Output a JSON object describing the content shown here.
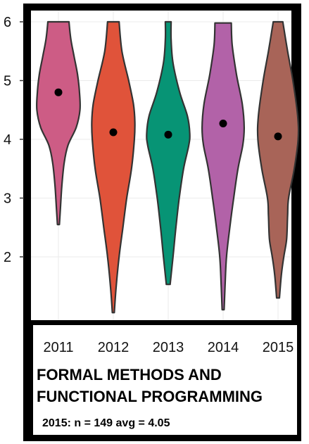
{
  "chart_data": {
    "type": "violin",
    "title_lines": [
      "FORMAL METHODS AND",
      "FUNCTIONAL PROGRAMMING"
    ],
    "subtitle": "2015: n = 149 avg = 4.05",
    "xlabel": "",
    "ylabel": "",
    "ylim": [
      1.0,
      6.2
    ],
    "yticks": [
      2,
      3,
      4,
      5,
      6
    ],
    "grid": true,
    "categories": [
      "2011",
      "2012",
      "2013",
      "2014",
      "2015"
    ],
    "colors": [
      "#CD5C85",
      "#E0533A",
      "#079475",
      "#B262A8",
      "#A86458"
    ],
    "means": [
      4.8,
      4.12,
      4.08,
      4.27,
      4.05
    ],
    "ranges": [
      [
        2.55,
        6.0
      ],
      [
        1.05,
        6.0
      ],
      [
        1.53,
        6.0
      ],
      [
        1.1,
        5.98
      ],
      [
        1.3,
        6.0
      ]
    ],
    "profiles": [
      [
        [
          2.55,
          0.02
        ],
        [
          2.8,
          0.04
        ],
        [
          3.2,
          0.07
        ],
        [
          3.6,
          0.12
        ],
        [
          3.9,
          0.2
        ],
        [
          4.2,
          0.37
        ],
        [
          4.5,
          0.45
        ],
        [
          4.8,
          0.44
        ],
        [
          5.1,
          0.4
        ],
        [
          5.4,
          0.33
        ],
        [
          5.7,
          0.26
        ],
        [
          6.0,
          0.22
        ]
      ],
      [
        [
          1.05,
          0.02
        ],
        [
          1.5,
          0.06
        ],
        [
          2.0,
          0.12
        ],
        [
          2.5,
          0.2
        ],
        [
          3.0,
          0.28
        ],
        [
          3.5,
          0.38
        ],
        [
          4.0,
          0.44
        ],
        [
          4.3,
          0.45
        ],
        [
          4.6,
          0.42
        ],
        [
          5.0,
          0.32
        ],
        [
          5.5,
          0.18
        ],
        [
          6.0,
          0.12
        ]
      ],
      [
        [
          1.53,
          0.04
        ],
        [
          2.0,
          0.1
        ],
        [
          2.5,
          0.16
        ],
        [
          3.0,
          0.23
        ],
        [
          3.5,
          0.32
        ],
        [
          3.9,
          0.43
        ],
        [
          4.1,
          0.45
        ],
        [
          4.4,
          0.4
        ],
        [
          4.8,
          0.24
        ],
        [
          5.3,
          0.1
        ],
        [
          5.7,
          0.06
        ],
        [
          6.0,
          0.06
        ]
      ],
      [
        [
          1.1,
          0.02
        ],
        [
          1.5,
          0.04
        ],
        [
          2.0,
          0.07
        ],
        [
          2.5,
          0.14
        ],
        [
          3.0,
          0.22
        ],
        [
          3.5,
          0.31
        ],
        [
          3.9,
          0.41
        ],
        [
          4.2,
          0.44
        ],
        [
          4.6,
          0.4
        ],
        [
          5.1,
          0.28
        ],
        [
          5.6,
          0.19
        ],
        [
          5.98,
          0.17
        ]
      ],
      [
        [
          1.3,
          0.03
        ],
        [
          1.7,
          0.07
        ],
        [
          2.0,
          0.12
        ],
        [
          2.3,
          0.18
        ],
        [
          2.7,
          0.2
        ],
        [
          3.0,
          0.22
        ],
        [
          3.5,
          0.34
        ],
        [
          4.0,
          0.42
        ],
        [
          4.4,
          0.41
        ],
        [
          5.0,
          0.31
        ],
        [
          5.5,
          0.2
        ],
        [
          6.0,
          0.1
        ]
      ]
    ]
  }
}
